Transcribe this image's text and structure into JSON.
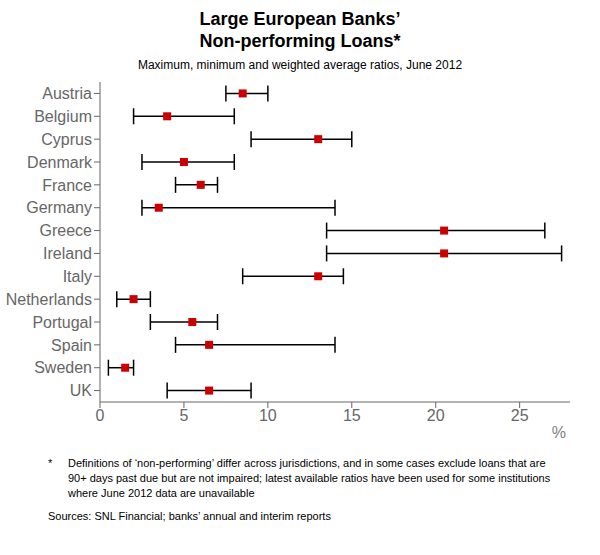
{
  "chart_data": {
    "type": "range",
    "title": "Large European Banks’\nNon-performing Loans*",
    "subtitle": "Maximum, minimum and weighted average ratios, June 2012",
    "categories": [
      "Austria",
      "Belgium",
      "Cyprus",
      "Denmark",
      "France",
      "Germany",
      "Greece",
      "Ireland",
      "Italy",
      "Netherlands",
      "Portugal",
      "Spain",
      "Sweden",
      "UK"
    ],
    "values": [
      8.5,
      4.0,
      13.0,
      5.0,
      6.0,
      3.5,
      20.5,
      20.5,
      13.0,
      2.0,
      5.5,
      6.5,
      1.5,
      6.5
    ],
    "min": [
      7.5,
      2.0,
      9.0,
      2.5,
      4.5,
      2.5,
      13.5,
      13.5,
      8.5,
      1.0,
      3.0,
      4.5,
      0.5,
      4.0
    ],
    "max": [
      10.0,
      8.0,
      15.0,
      8.0,
      7.0,
      14.0,
      26.5,
      27.5,
      14.5,
      3.0,
      7.0,
      14.0,
      2.0,
      9.0
    ],
    "color": "#cc0000",
    "marker": "square",
    "xlim": [
      0,
      28
    ],
    "xticks": [
      0,
      5,
      10,
      15,
      20,
      25
    ],
    "xlabel": "%",
    "grid": false,
    "annotations": [
      "*",
      "Definitions of ‘non-performing’ differ across jurisdictions, and in some cases exclude loans that are 90+ days past due but are not impaired; latest available ratios have been used for some institutions where June 2012 data are unavailable",
      "Sources: SNL Financial; banks’ annual and interim reports"
    ]
  }
}
